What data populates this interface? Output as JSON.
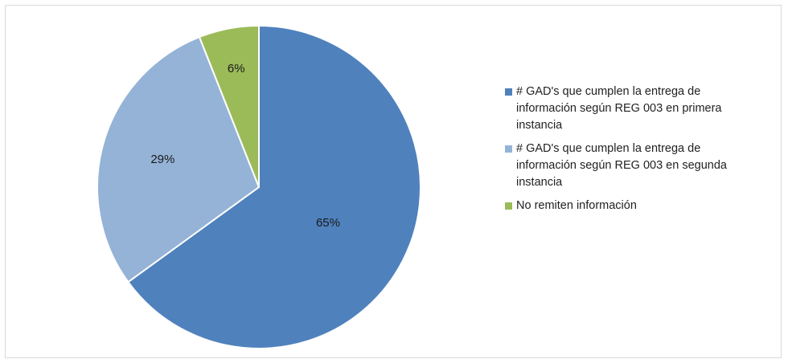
{
  "chart_data": {
    "type": "pie",
    "title": "",
    "slices": [
      {
        "label": "# GAD's que cumplen la entrega de información según REG 003 en primera instancia",
        "value": 65,
        "value_label": "65%",
        "color": "#4f81bd"
      },
      {
        "label": "# GAD's que cumplen la entrega de información según REG 003 en segunda instancia",
        "value": 29,
        "value_label": "29%",
        "color": "#95b3d7"
      },
      {
        "label": "No remiten información",
        "value": 6,
        "value_label": "6%",
        "color": "#9bbb59"
      }
    ],
    "start_angle": "12 o'clock",
    "direction": "clockwise",
    "legend_position": "right",
    "slice_border_color": "#ffffff"
  }
}
